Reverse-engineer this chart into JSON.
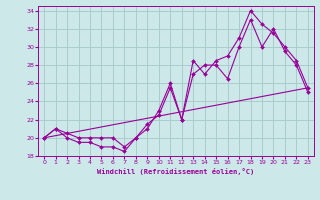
{
  "xlabel": "Windchill (Refroidissement éolien,°C)",
  "bg_color": "#cce8e8",
  "line_color": "#990099",
  "grid_color": "#aacccc",
  "xlim": [
    -0.5,
    23.5
  ],
  "ylim": [
    18,
    34.5
  ],
  "yticks": [
    18,
    20,
    22,
    24,
    26,
    28,
    30,
    32,
    34
  ],
  "xticks": [
    0,
    1,
    2,
    3,
    4,
    5,
    6,
    7,
    8,
    9,
    10,
    11,
    12,
    13,
    14,
    15,
    16,
    17,
    18,
    19,
    20,
    21,
    22,
    23
  ],
  "series": [
    {
      "x": [
        0,
        1,
        2,
        3,
        4,
        5,
        6,
        7,
        8,
        9,
        10,
        11,
        12,
        13,
        14,
        15,
        16,
        17,
        18,
        19,
        20,
        21,
        22,
        23
      ],
      "y": [
        20,
        21,
        20,
        19.5,
        19.5,
        19,
        19,
        18.5,
        20,
        21.5,
        22.5,
        25.5,
        22,
        27,
        28,
        28,
        26.5,
        30,
        33,
        30,
        32,
        29.5,
        28,
        25
      ],
      "markers": true
    },
    {
      "x": [
        0,
        1,
        2,
        3,
        4,
        5,
        6,
        7,
        8,
        9,
        10,
        11,
        12,
        13,
        14,
        15,
        16,
        17,
        18,
        19,
        20,
        21,
        22,
        23
      ],
      "y": [
        20,
        21,
        20.5,
        20,
        20,
        20,
        20,
        19,
        20,
        21,
        23,
        26,
        22,
        28.5,
        27,
        28.5,
        29,
        31,
        34,
        32.5,
        31.5,
        30,
        28.5,
        25.5
      ],
      "markers": true
    },
    {
      "x": [
        0,
        23
      ],
      "y": [
        20,
        25.5
      ],
      "markers": false
    }
  ]
}
